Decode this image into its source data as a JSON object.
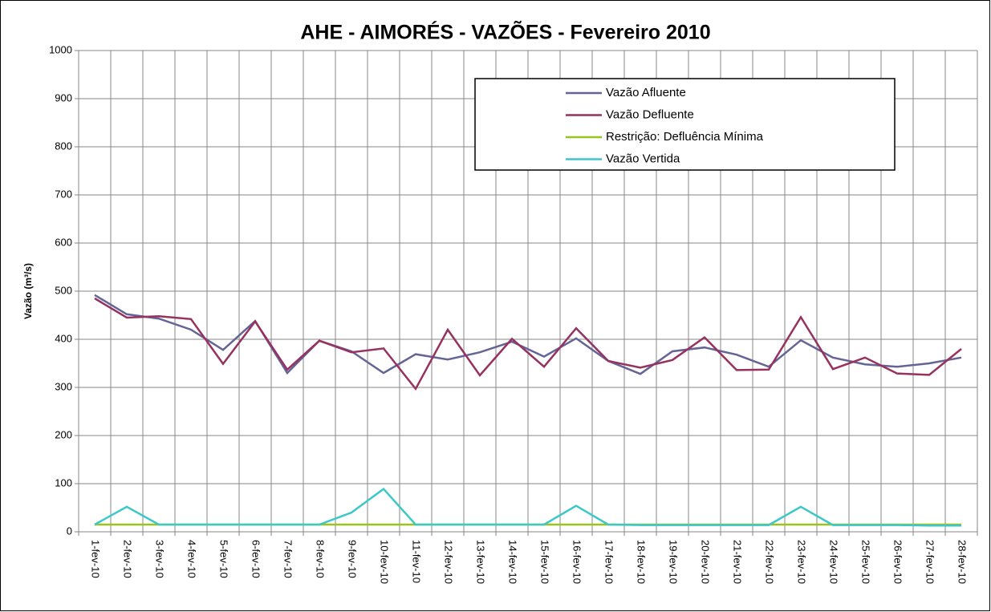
{
  "chart_data": {
    "type": "line",
    "title": "AHE - AIMORÉS - VAZÕES -  Fevereiro 2010",
    "y_label": "Vazão (m³/s)",
    "categories": [
      "1-fev-10",
      "2-fev-10",
      "3-fev-10",
      "4-fev-10",
      "5-fev-10",
      "6-fev-10",
      "7-fev-10",
      "8-fev-10",
      "9-fev-10",
      "10-fev-10",
      "11-fev-10",
      "12-fev-10",
      "13-fev-10",
      "14-fev-10",
      "15-fev-10",
      "16-fev-10",
      "17-fev-10",
      "18-fev-10",
      "19-fev-10",
      "20-fev-10",
      "21-fev-10",
      "22-fev-10",
      "23-fev-10",
      "24-fev-10",
      "25-fev-10",
      "26-fev-10",
      "27-fev-10",
      "28-fev-10"
    ],
    "series": [
      {
        "name": "Vazão Afluente",
        "color": "#646496",
        "values": [
          492,
          452,
          443,
          420,
          378,
          438,
          330,
          397,
          375,
          330,
          369,
          358,
          373,
          395,
          364,
          402,
          355,
          328,
          375,
          383,
          368,
          343,
          398,
          362,
          348,
          343,
          350,
          362
        ]
      },
      {
        "name": "Vazão Defluente",
        "color": "#96325f",
        "values": [
          485,
          445,
          448,
          442,
          349,
          437,
          337,
          397,
          373,
          381,
          297,
          420,
          325,
          401,
          343,
          423,
          355,
          341,
          357,
          404,
          336,
          337,
          446,
          338,
          362,
          329,
          326,
          380
        ]
      },
      {
        "name": "Restrição: Defluência Mínima",
        "color": "#9bc31e",
        "values": [
          15,
          15,
          15,
          15,
          15,
          15,
          15,
          15,
          15,
          15,
          15,
          15,
          15,
          15,
          15,
          15,
          15,
          15,
          15,
          15,
          15,
          15,
          15,
          15,
          15,
          15,
          15,
          15
        ]
      },
      {
        "name": "Vazão Vertida",
        "color": "#3cc8c8",
        "values": [
          15,
          52,
          15,
          15,
          15,
          15,
          15,
          15,
          40,
          89,
          15,
          15,
          15,
          15,
          15,
          54,
          15,
          14,
          14,
          14,
          14,
          14,
          52,
          14,
          14,
          14,
          13,
          13
        ]
      }
    ],
    "ylim": [
      0,
      1000
    ],
    "yticks": [
      0,
      100,
      200,
      300,
      400,
      500,
      600,
      700,
      800,
      900,
      1000
    ],
    "grid": true,
    "legend": "top-right"
  }
}
